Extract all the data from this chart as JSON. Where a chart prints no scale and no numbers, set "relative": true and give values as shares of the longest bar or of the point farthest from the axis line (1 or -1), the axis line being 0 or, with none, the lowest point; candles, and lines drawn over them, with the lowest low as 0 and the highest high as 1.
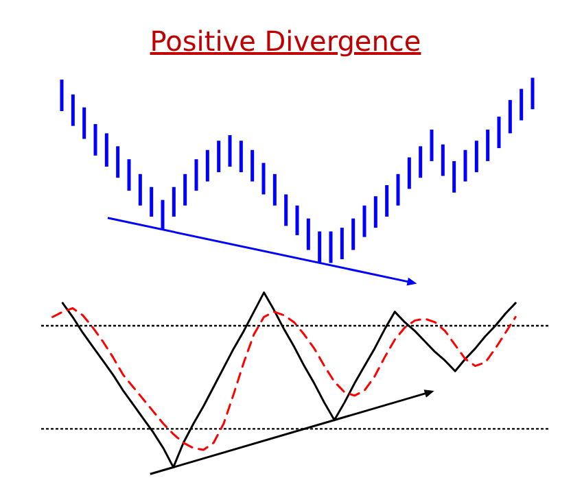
{
  "chart_data": [
    {
      "type": "candlestick",
      "title": "Positive Divergence",
      "relative": true,
      "categories": [
        null,
        null,
        null,
        null,
        null,
        null,
        null,
        null,
        null,
        null,
        null,
        null,
        null,
        null,
        null,
        null,
        null,
        null,
        null,
        null,
        null,
        null,
        null,
        null,
        null,
        null,
        null,
        null,
        null,
        null,
        null,
        null,
        null,
        null,
        null,
        null,
        null,
        null,
        null,
        null,
        null,
        null,
        null
      ],
      "series": [
        {
          "color": "#0000ff",
          "ohlc": [
            [
              0.99,
              0.99,
              0.82,
              0.82
            ],
            [
              0.91,
              0.91,
              0.74,
              0.74
            ],
            [
              0.84,
              0.84,
              0.67,
              0.67
            ],
            [
              0.75,
              0.75,
              0.58,
              0.58
            ],
            [
              0.7,
              0.7,
              0.52,
              0.52
            ],
            [
              0.63,
              0.63,
              0.46,
              0.46
            ],
            [
              0.56,
              0.56,
              0.39,
              0.39
            ],
            [
              0.48,
              0.48,
              0.31,
              0.31
            ],
            [
              0.41,
              0.41,
              0.25,
              0.25
            ],
            [
              0.34,
              0.34,
              0.18,
              0.18
            ],
            [
              0.41,
              0.41,
              0.25,
              0.25
            ],
            [
              0.48,
              0.48,
              0.31,
              0.31
            ],
            [
              0.56,
              0.56,
              0.39,
              0.39
            ],
            [
              0.61,
              0.61,
              0.44,
              0.44
            ],
            [
              0.66,
              0.66,
              0.49,
              0.49
            ],
            [
              0.69,
              0.69,
              0.52,
              0.52
            ],
            [
              0.66,
              0.66,
              0.49,
              0.49
            ],
            [
              0.61,
              0.61,
              0.44,
              0.44
            ],
            [
              0.54,
              0.54,
              0.37,
              0.37
            ],
            [
              0.48,
              0.48,
              0.31,
              0.31
            ],
            [
              0.37,
              0.37,
              0.2,
              0.2
            ],
            [
              0.31,
              0.31,
              0.15,
              0.15
            ],
            [
              0.24,
              0.24,
              0.07,
              0.07
            ],
            [
              0.17,
              0.17,
              0,
              0
            ],
            [
              0.17,
              0.17,
              0,
              0
            ],
            [
              0.19,
              0.19,
              0.02,
              0.02
            ],
            [
              0.24,
              0.24,
              0.07,
              0.07
            ],
            [
              0.31,
              0.31,
              0.14,
              0.14
            ],
            [
              0.36,
              0.36,
              0.19,
              0.19
            ],
            [
              0.42,
              0.42,
              0.25,
              0.25
            ],
            [
              0.48,
              0.48,
              0.31,
              0.31
            ],
            [
              0.57,
              0.57,
              0.4,
              0.4
            ],
            [
              0.63,
              0.63,
              0.46,
              0.46
            ],
            [
              0.72,
              0.72,
              0.55,
              0.55
            ],
            [
              0.64,
              0.64,
              0.47,
              0.47
            ],
            [
              0.55,
              0.55,
              0.38,
              0.38
            ],
            [
              0.61,
              0.61,
              0.44,
              0.44
            ],
            [
              0.66,
              0.66,
              0.49,
              0.49
            ],
            [
              0.72,
              0.72,
              0.55,
              0.55
            ],
            [
              0.79,
              0.79,
              0.62,
              0.62
            ],
            [
              0.88,
              0.88,
              0.7,
              0.7
            ],
            [
              0.94,
              0.94,
              0.77,
              0.77
            ],
            [
              1,
              1,
              0.83,
              0.83
            ]
          ]
        }
      ]
    },
    {
      "type": "line",
      "relative": true,
      "categories": [
        null,
        null,
        null,
        null,
        null,
        null,
        null,
        null,
        null,
        null,
        null,
        null,
        null,
        null,
        null,
        null,
        null,
        null,
        null,
        null,
        null,
        null,
        null,
        null,
        null,
        null,
        null,
        null,
        null,
        null,
        null,
        null,
        null,
        null,
        null,
        null,
        null,
        null,
        null,
        null,
        null,
        null,
        null,
        null,
        null,
        null,
        null
      ],
      "series": [
        {
          "color": "#000000",
          "line_style": "solid",
          "values": [
            null,
            0.94,
            0.86,
            0.77,
            0.69,
            0.61,
            0.53,
            0.44,
            0.36,
            0.28,
            0.2,
            0.11,
            0,
            0.14,
            0.25,
            0.35,
            0.46,
            0.57,
            0.68,
            0.78,
            0.89,
            1,
            0.9,
            0.79,
            0.69,
            0.58,
            0.48,
            0.37,
            0.27,
            0.37,
            0.48,
            0.58,
            0.68,
            0.79,
            0.89,
            0.83,
            0.78,
            0.72,
            0.66,
            0.61,
            0.55,
            0.62,
            0.68,
            0.75,
            0.81,
            0.88,
            0.94
          ]
        },
        {
          "color": "#ff0000",
          "line_style": "dashed",
          "values": [
            0.86,
            0.89,
            0.91,
            0.87,
            0.8,
            0.72,
            0.63,
            0.53,
            0.46,
            0.39,
            0.32,
            0.25,
            0.19,
            0.14,
            0.11,
            0.1,
            0.14,
            0.25,
            0.42,
            0.6,
            0.76,
            0.86,
            0.89,
            0.87,
            0.83,
            0.76,
            0.68,
            0.58,
            0.49,
            0.43,
            0.41,
            0.44,
            0.52,
            0.63,
            0.73,
            0.8,
            0.84,
            0.85,
            0.83,
            0.78,
            0.7,
            0.62,
            0.58,
            0.6,
            0.68,
            0.77,
            0.86
          ]
        }
      ],
      "ref_lines": [
        {
          "axis": "y",
          "value": 0.81,
          "color": "#000000",
          "line_style": "dotted"
        },
        {
          "axis": "y",
          "value": 0.22,
          "color": "#000000",
          "line_style": "dotted"
        }
      ]
    }
  ]
}
